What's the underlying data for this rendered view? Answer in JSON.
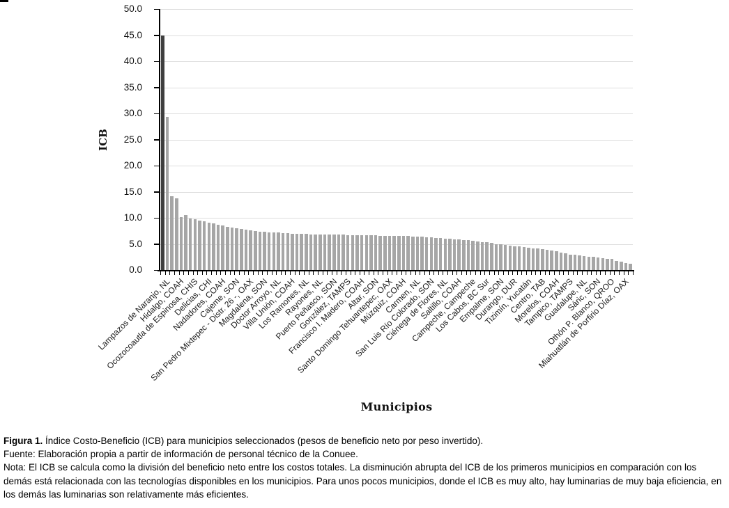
{
  "chart_data": {
    "type": "bar",
    "title": "",
    "xlabel": "Municipios",
    "ylabel": "ICB",
    "ylim": [
      0,
      50
    ],
    "ytick_step": 5,
    "ytick_labels": [
      "50.0",
      "45.0",
      "40.0",
      "35.0",
      "30.0",
      "25.0",
      "20.0",
      "15.0",
      "10.0",
      "5.0",
      "0.0"
    ],
    "grid": "horizontal-major",
    "legend": "none",
    "label_every": 3,
    "categories": [
      "Lampazos de Naranjo, NL",
      "Hidalgo, COAH",
      "Ocozocoautla de Espinosa, CHIS",
      "Delicias, CHI",
      "Nadadores, COAH",
      "Cajeme, SON",
      "San Pedro Mixtepec - Distr. 26 -, OAX",
      "Magdalena, SON",
      "Doctor Arroyo, NL",
      "Villa Unión, COAH",
      "Los Ramones, NL",
      "Rayones, NL",
      "Puerto Peñasco, SON",
      "González, TAMPS",
      "Francisco I. Madero, COAH",
      "Altar, SON",
      "Santo Domingo Tehuantepec, OAX",
      "Múzquiz, COAH",
      "Carmen, NL",
      "San Luis Río Colorado, SON",
      "Ciénega de Flores, NL",
      "Saltillo, COAH",
      "Campeche, Campeche",
      "Los Cabos, BC Sur",
      "Empalme, SON",
      "Durango, DUR",
      "Tizimín, Yucatán",
      "Centro, TAB",
      "Morelos, COAH",
      "Tampico, TAMPS",
      "Guadalupe, NL",
      "Sáric, SON",
      "Othón P. Blanco, QROO",
      "Miahuatlán de Porfirio Díaz, OAX"
    ],
    "values": [
      45.0,
      29.3,
      14.2,
      13.7,
      10.2,
      10.5,
      9.9,
      9.7,
      9.5,
      9.3,
      9.1,
      8.9,
      8.7,
      8.5,
      8.3,
      8.1,
      8.0,
      7.9,
      7.8,
      7.6,
      7.5,
      7.4,
      7.3,
      7.25,
      7.2,
      7.15,
      7.1,
      7.05,
      7.0,
      6.95,
      6.9,
      6.9,
      6.85,
      6.85,
      6.8,
      6.8,
      6.8,
      6.75,
      6.75,
      6.75,
      6.7,
      6.7,
      6.7,
      6.7,
      6.65,
      6.65,
      6.65,
      6.6,
      6.6,
      6.6,
      6.55,
      6.55,
      6.5,
      6.5,
      6.45,
      6.4,
      6.35,
      6.3,
      6.25,
      6.2,
      6.1,
      6.0,
      5.95,
      5.9,
      5.85,
      5.8,
      5.7,
      5.6,
      5.5,
      5.4,
      5.3,
      5.15,
      5.0,
      4.9,
      4.8,
      4.7,
      4.6,
      4.5,
      4.4,
      4.3,
      4.2,
      4.1,
      4.0,
      3.9,
      3.8,
      3.6,
      3.4,
      3.2,
      3.0,
      2.9,
      2.8,
      2.7,
      2.6,
      2.5,
      2.4,
      2.3,
      2.2,
      2.1,
      1.8,
      1.6,
      1.4,
      1.2
    ],
    "bar_color": "#a6a6a6",
    "first_bar_color": "#3f3f3f",
    "gridline_color": "#dedede",
    "axis_color": "#000000"
  },
  "caption": {
    "figura_bold": "Figura 1.",
    "figura_rest": " Índice Costo-Beneficio (ICB) para municipios seleccionados (pesos de beneficio neto por peso invertido).",
    "fuente": "Fuente: Elaboración propia a partir de información de personal técnico de la Conuee.",
    "nota": "Nota: El ICB se calcula como la división del beneficio neto entre los costos totales. La disminución abrupta del ICB de los primeros municipios en comparación con los demás está relacionada con las tecnologías disponibles en los municipios. Para unos pocos municipios, donde el ICB es muy alto, hay luminarias de muy baja eficiencia, en los demás las luminarias son relativamente más eficientes."
  }
}
